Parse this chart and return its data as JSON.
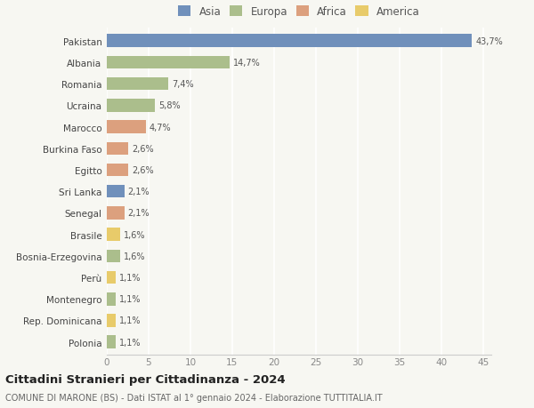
{
  "countries": [
    "Pakistan",
    "Albania",
    "Romania",
    "Ucraina",
    "Marocco",
    "Burkina Faso",
    "Egitto",
    "Sri Lanka",
    "Senegal",
    "Brasile",
    "Bosnia-Erzegovina",
    "Perù",
    "Montenegro",
    "Rep. Dominicana",
    "Polonia"
  ],
  "values": [
    43.7,
    14.7,
    7.4,
    5.8,
    4.7,
    2.6,
    2.6,
    2.1,
    2.1,
    1.6,
    1.6,
    1.1,
    1.1,
    1.1,
    1.1
  ],
  "labels": [
    "43,7%",
    "14,7%",
    "7,4%",
    "5,8%",
    "4,7%",
    "2,6%",
    "2,6%",
    "2,1%",
    "2,1%",
    "1,6%",
    "1,6%",
    "1,1%",
    "1,1%",
    "1,1%",
    "1,1%"
  ],
  "continents": [
    "Asia",
    "Europa",
    "Europa",
    "Europa",
    "Africa",
    "Africa",
    "Africa",
    "Asia",
    "Africa",
    "America",
    "Europa",
    "America",
    "Europa",
    "America",
    "Europa"
  ],
  "continent_colors": {
    "Asia": "#7090bb",
    "Europa": "#abbe8c",
    "Africa": "#dca07e",
    "America": "#e8cb6a"
  },
  "legend_order": [
    "Asia",
    "Europa",
    "Africa",
    "America"
  ],
  "title": "Cittadini Stranieri per Cittadinanza - 2024",
  "subtitle": "COMUNE DI MARONE (BS) - Dati ISTAT al 1° gennaio 2024 - Elaborazione TUTTITALIA.IT",
  "xlim": [
    0,
    46
  ],
  "xticks": [
    0,
    5,
    10,
    15,
    20,
    25,
    30,
    35,
    40,
    45
  ],
  "background_color": "#f7f7f2",
  "grid_color": "#ffffff",
  "bar_height": 0.6
}
